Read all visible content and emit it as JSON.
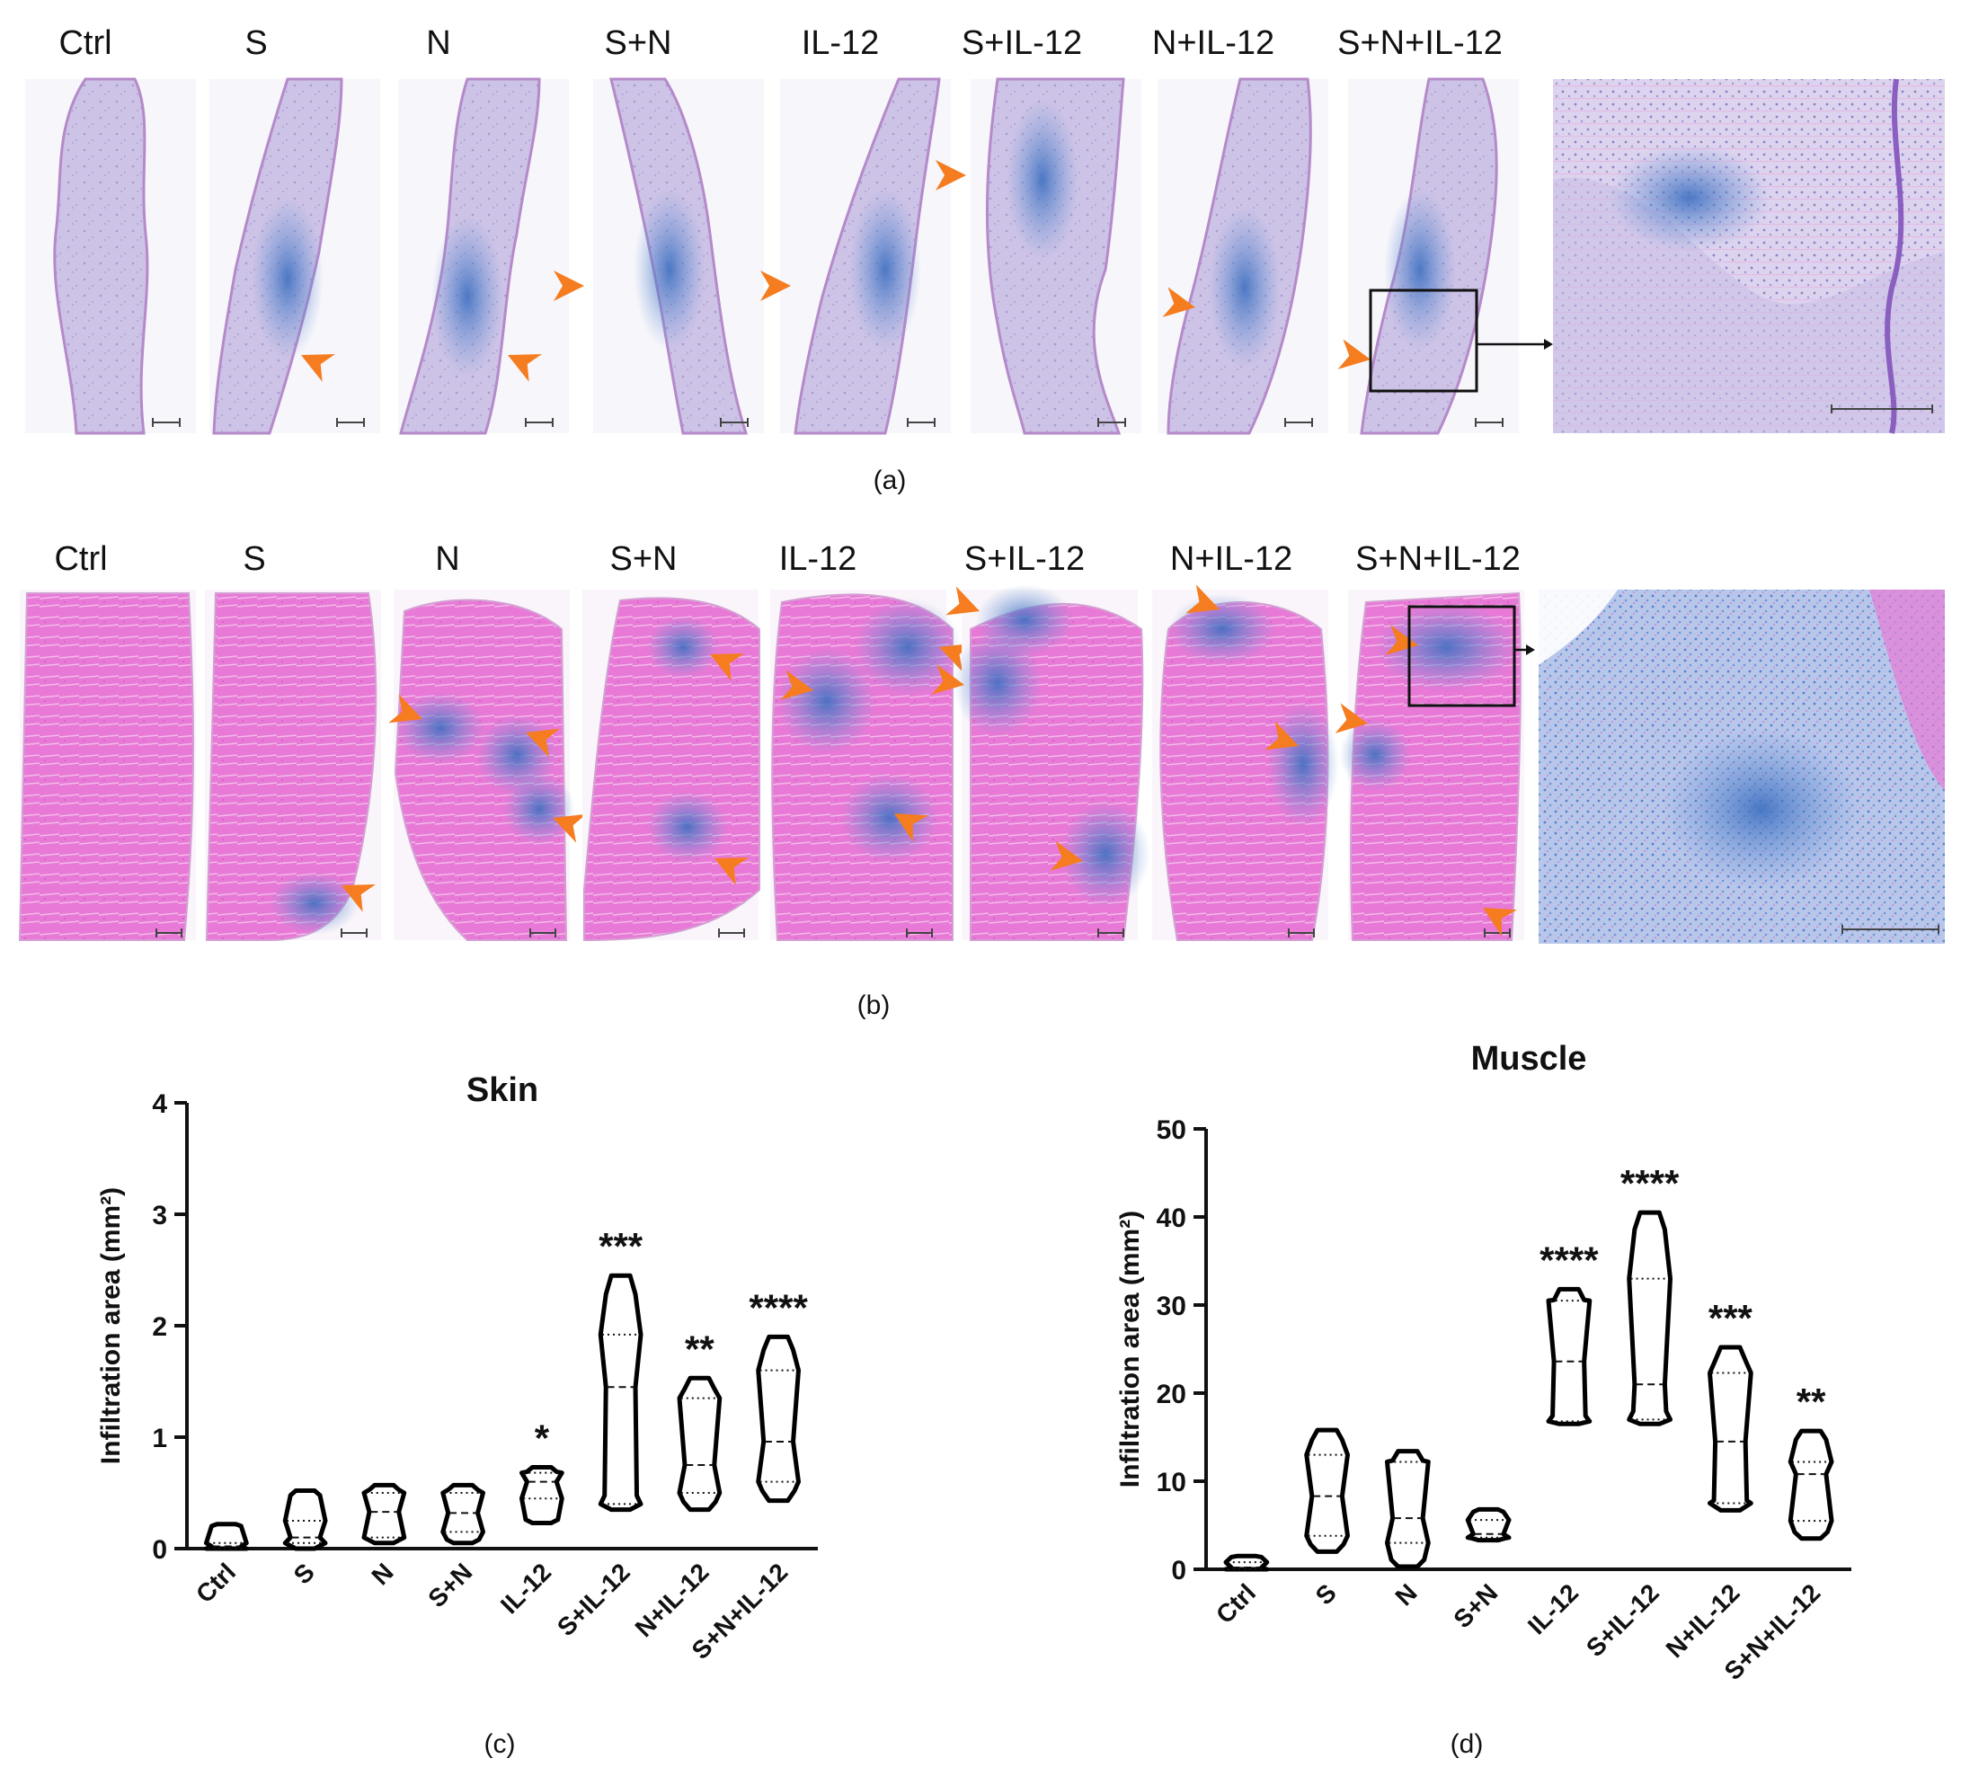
{
  "panels": {
    "a": {
      "label": "(a)",
      "columns": [
        "Ctrl",
        "S",
        "N",
        "S+N",
        "IL-12",
        "S+IL-12",
        "N+IL-12",
        "S+N+IL-12"
      ]
    },
    "b": {
      "label": "(b)",
      "columns": [
        "Ctrl",
        "S",
        "N",
        "S+N",
        "IL-12",
        "S+IL-12",
        "N+IL-12",
        "S+N+IL-12"
      ]
    },
    "c": {
      "label": "(c)"
    },
    "d": {
      "label": "(d)"
    }
  },
  "colors": {
    "arrowhead": "#f57c1f",
    "skin_stain": "#b7a9d8",
    "muscle_stain": "#e46ad0",
    "infiltrate": "#4f7fc8",
    "violin_stroke": "#000000"
  },
  "chart_data": [
    {
      "type": "violin",
      "title": "Skin",
      "ylabel": "Infiltration area (mm²)",
      "xlabel": "",
      "ylim": [
        0,
        4
      ],
      "yticks": [
        0,
        1,
        2,
        3,
        4
      ],
      "categories": [
        "Ctrl",
        "S",
        "N",
        "S+N",
        "IL-12",
        "S+IL-12",
        "N+IL-12",
        "S+N+IL-12"
      ],
      "significance": [
        "",
        "",
        "",
        "",
        "*",
        "***",
        "**",
        "****"
      ],
      "series": [
        {
          "min": 0.0,
          "max": 0.22,
          "median": 0.02,
          "q1": 0.0,
          "q3": 0.05
        },
        {
          "min": 0.0,
          "max": 0.52,
          "median": 0.1,
          "q1": 0.05,
          "q3": 0.25
        },
        {
          "min": 0.05,
          "max": 0.57,
          "median": 0.33,
          "q1": 0.1,
          "q3": 0.5
        },
        {
          "min": 0.05,
          "max": 0.57,
          "median": 0.32,
          "q1": 0.15,
          "q3": 0.5
        },
        {
          "min": 0.23,
          "max": 0.73,
          "median": 0.6,
          "q1": 0.45,
          "q3": 0.68
        },
        {
          "min": 0.35,
          "max": 2.45,
          "median": 1.45,
          "q1": 0.4,
          "q3": 1.92
        },
        {
          "min": 0.35,
          "max": 1.53,
          "median": 0.75,
          "q1": 0.5,
          "q3": 1.35
        },
        {
          "min": 0.43,
          "max": 1.9,
          "median": 0.96,
          "q1": 0.6,
          "q3": 1.6
        }
      ]
    },
    {
      "type": "violin",
      "title": "Muscle",
      "ylabel": "Infiltration area (mm²)",
      "xlabel": "",
      "ylim": [
        0,
        50
      ],
      "yticks": [
        0,
        10,
        20,
        30,
        40,
        50
      ],
      "categories": [
        "Ctrl",
        "S",
        "N",
        "S+N",
        "IL-12",
        "S+IL-12",
        "N+IL-12",
        "S+N+IL-12"
      ],
      "significance": [
        "",
        "",
        "",
        "",
        "****",
        "****",
        "***",
        "**"
      ],
      "series": [
        {
          "min": 0.0,
          "max": 1.5,
          "median": 0.2,
          "q1": 0.0,
          "q3": 0.8
        },
        {
          "min": 2.0,
          "max": 15.8,
          "median": 8.3,
          "q1": 3.8,
          "q3": 13.0
        },
        {
          "min": 0.3,
          "max": 13.4,
          "median": 5.8,
          "q1": 3.0,
          "q3": 12.2
        },
        {
          "min": 3.3,
          "max": 6.8,
          "median": 4.0,
          "q1": 3.6,
          "q3": 5.6
        },
        {
          "min": 16.5,
          "max": 31.8,
          "median": 23.6,
          "q1": 16.8,
          "q3": 30.5
        },
        {
          "min": 16.5,
          "max": 40.5,
          "median": 21.0,
          "q1": 17.0,
          "q3": 33.0
        },
        {
          "min": 6.7,
          "max": 25.2,
          "median": 14.5,
          "q1": 7.5,
          "q3": 22.3
        },
        {
          "min": 3.5,
          "max": 15.7,
          "median": 10.8,
          "q1": 5.5,
          "q3": 12.2
        }
      ]
    }
  ]
}
